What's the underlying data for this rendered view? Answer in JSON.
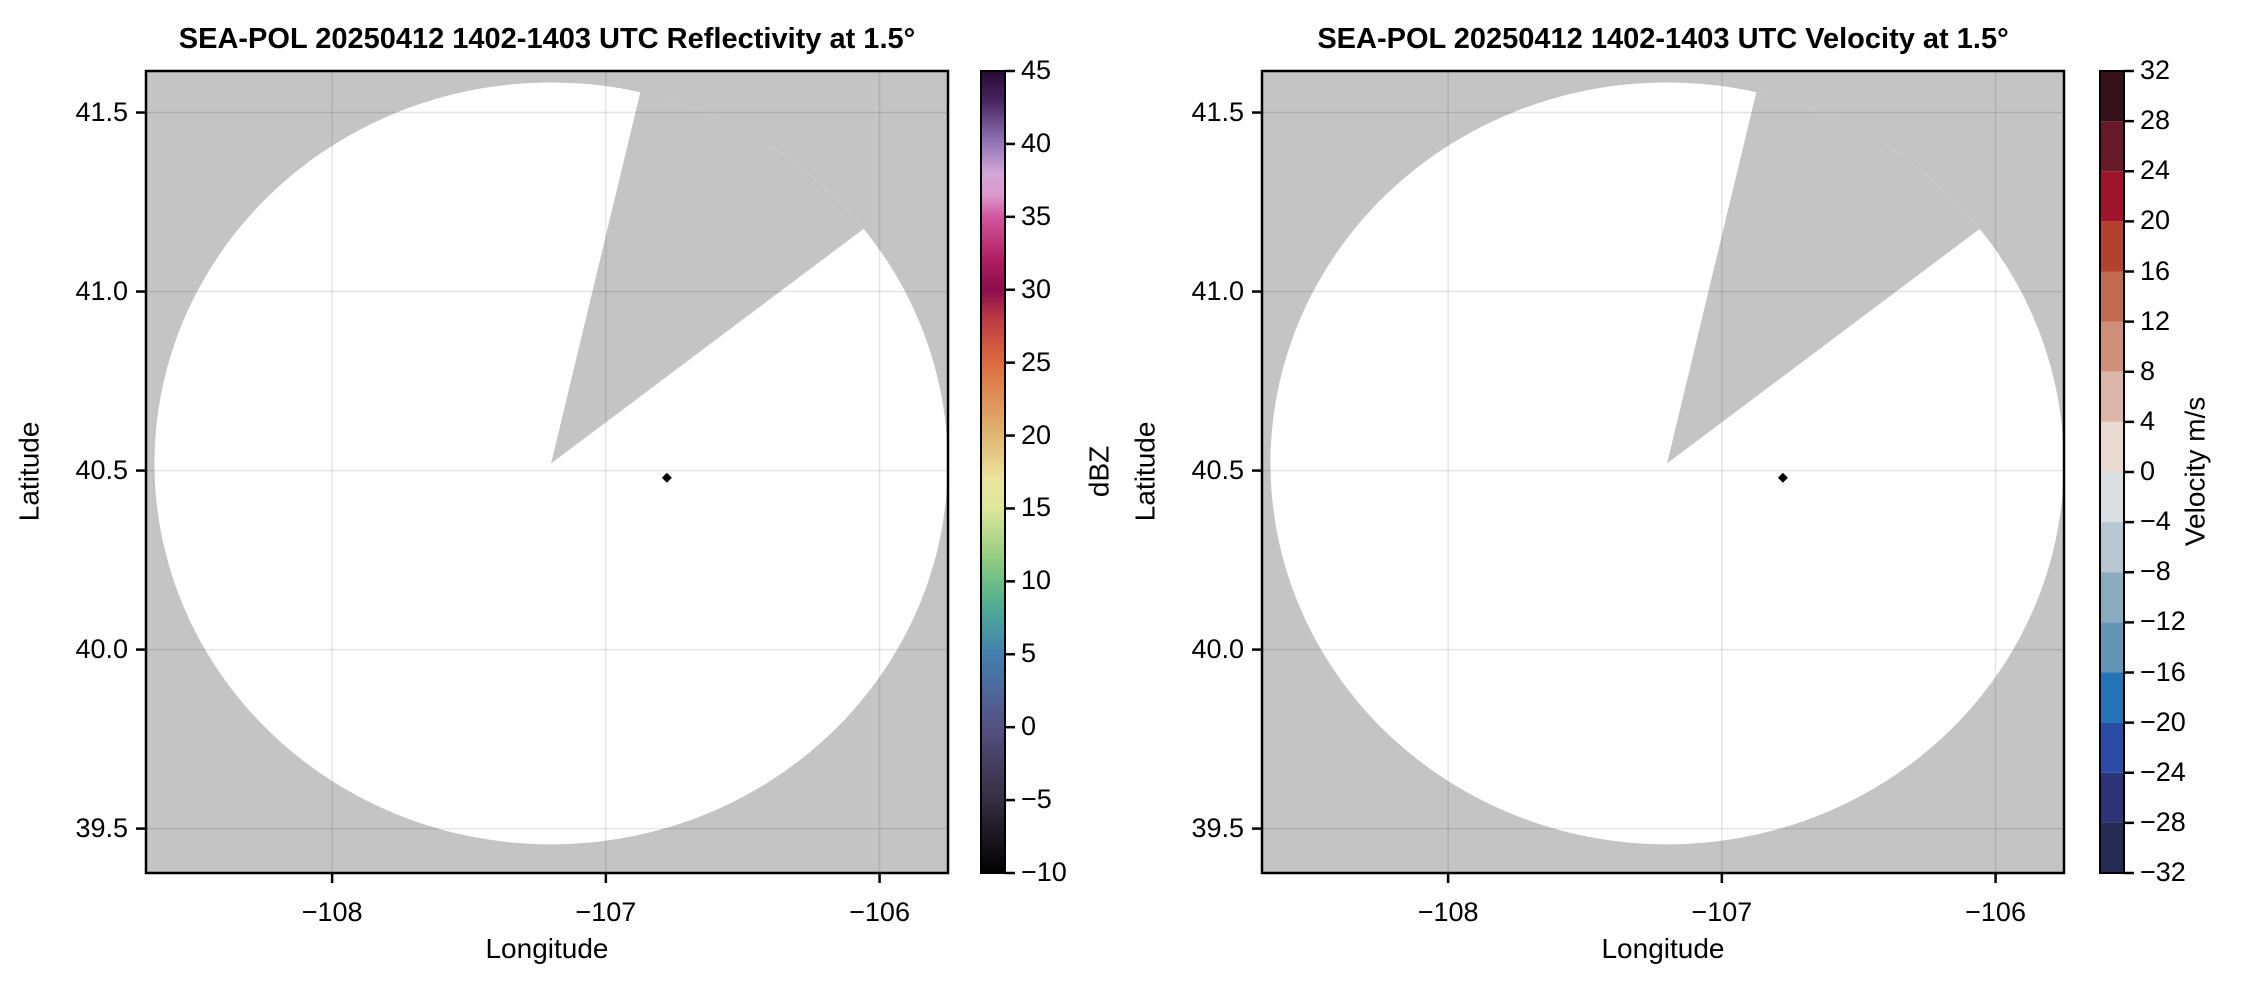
{
  "figure": {
    "background": "#ffffff",
    "no_data_color": "#c4c4c4",
    "grid_color": "rgba(0,0,0,0.10)",
    "border_color": "#000000"
  },
  "chart_data": [
    {
      "type": "radar_ppi",
      "field": "reflectivity",
      "title": "SEA-POL 20250412 1402-1403 UTC Reflectivity at 1.5°",
      "xlabel": "Longitude",
      "ylabel": "Latitude",
      "grid": true,
      "xlim": [
        -108.68,
        -105.75
      ],
      "ylim": [
        39.376,
        41.616
      ],
      "x_ticks": [
        -108,
        -107,
        -106
      ],
      "x_tick_labels": [
        "−108",
        "−107",
        "−106"
      ],
      "y_ticks": [
        41.5,
        41.0,
        40.5,
        40.0,
        39.5
      ],
      "y_tick_labels": [
        "41.5",
        "41.0",
        "40.5",
        "40.0",
        "39.5"
      ],
      "scan": {
        "center_lon": -107.2,
        "center_lat": 40.52,
        "radius_lon_deg": 1.449,
        "radius_lat_deg": 1.064,
        "missing_sector_azimuth_deg": [
          13,
          52
        ],
        "data_color": "#ffffff"
      },
      "marker": {
        "lon": -106.777,
        "lat": 40.48,
        "shape": "diamond",
        "color": "#000000"
      },
      "colorbar": {
        "label": "dBZ",
        "min": -10,
        "max": 45,
        "style": "continuous",
        "ticks": [
          45,
          40,
          35,
          30,
          25,
          20,
          15,
          10,
          5,
          0,
          -5,
          -10
        ],
        "tick_labels": [
          "45",
          "40",
          "35",
          "30",
          "25",
          "20",
          "15",
          "10",
          "5",
          "0",
          "−5",
          "−10"
        ],
        "stops": [
          [
            45,
            "#2a0a33"
          ],
          [
            43,
            "#46245f"
          ],
          [
            40,
            "#9577b7"
          ],
          [
            38,
            "#d2a6d7"
          ],
          [
            36.5,
            "#da9aca"
          ],
          [
            35,
            "#d4569e"
          ],
          [
            32,
            "#b01d60"
          ],
          [
            30,
            "#8b0e4d"
          ],
          [
            28,
            "#bc3a43"
          ],
          [
            25,
            "#dd6b40"
          ],
          [
            20,
            "#dfb672"
          ],
          [
            17,
            "#ece49f"
          ],
          [
            15,
            "#dce79c"
          ],
          [
            12,
            "#9cd083"
          ],
          [
            10,
            "#6fbe86"
          ],
          [
            8,
            "#4ca996"
          ],
          [
            5,
            "#447fb0"
          ],
          [
            0,
            "#555081"
          ],
          [
            -5,
            "#362e41"
          ],
          [
            -10,
            "#000000"
          ]
        ]
      }
    },
    {
      "type": "radar_ppi",
      "field": "velocity",
      "title": "SEA-POL 20250412 1402-1403 UTC Velocity at 1.5°",
      "xlabel": "Longitude",
      "ylabel": "Latitude",
      "grid": true,
      "xlim": [
        -108.68,
        -105.75
      ],
      "ylim": [
        39.376,
        41.616
      ],
      "x_ticks": [
        -108,
        -107,
        -106
      ],
      "x_tick_labels": [
        "−108",
        "−107",
        "−106"
      ],
      "y_ticks": [
        41.5,
        41.0,
        40.5,
        40.0,
        39.5
      ],
      "y_tick_labels": [
        "41.5",
        "41.0",
        "40.5",
        "40.0",
        "39.5"
      ],
      "scan": {
        "center_lon": -107.2,
        "center_lat": 40.52,
        "radius_lon_deg": 1.449,
        "radius_lat_deg": 1.064,
        "missing_sector_azimuth_deg": [
          13,
          52
        ],
        "data_color": "#ffffff"
      },
      "marker": {
        "lon": -106.777,
        "lat": 40.48,
        "shape": "diamond",
        "color": "#000000"
      },
      "colorbar": {
        "label": "Velocity m/s",
        "min": -32,
        "max": 32,
        "style": "discrete",
        "ticks": [
          32,
          28,
          24,
          20,
          16,
          12,
          8,
          4,
          0,
          -4,
          -8,
          -12,
          -16,
          -20,
          -24,
          -28,
          -32
        ],
        "tick_labels": [
          "32",
          "28",
          "24",
          "20",
          "16",
          "12",
          "8",
          "4",
          "0",
          "−4",
          "−8",
          "−12",
          "−16",
          "−20",
          "−24",
          "−28",
          "−32"
        ],
        "blocks": [
          [
            28,
            32,
            "#351019"
          ],
          [
            24,
            28,
            "#681a2b"
          ],
          [
            20,
            24,
            "#9e1428"
          ],
          [
            16,
            20,
            "#b2422e"
          ],
          [
            12,
            16,
            "#c06b50"
          ],
          [
            8,
            12,
            "#ce907a"
          ],
          [
            4,
            8,
            "#dcb6a8"
          ],
          [
            0,
            4,
            "#ead9d1"
          ],
          [
            -4,
            0,
            "#d9dfe3"
          ],
          [
            -8,
            -4,
            "#b7c7d1"
          ],
          [
            -12,
            -8,
            "#8aabc0"
          ],
          [
            -16,
            -12,
            "#6495b6"
          ],
          [
            -20,
            -16,
            "#2373b5"
          ],
          [
            -24,
            -20,
            "#2c4ba4"
          ],
          [
            -28,
            -24,
            "#2c3376"
          ],
          [
            -32,
            -28,
            "#242a52"
          ]
        ]
      }
    }
  ]
}
